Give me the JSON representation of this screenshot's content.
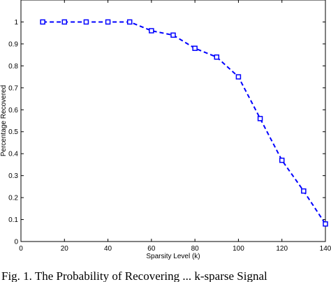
{
  "chart_data": {
    "type": "line",
    "title": "",
    "xlabel": "Sparsity Level (k)",
    "ylabel": "Percentage Recovered",
    "xlim": [
      0,
      140
    ],
    "ylim": [
      0,
      1.1
    ],
    "x_ticks": [
      0,
      20,
      40,
      60,
      80,
      100,
      120,
      140
    ],
    "y_ticks": [
      0,
      0.1,
      0.2,
      0.3,
      0.4,
      0.5,
      0.6,
      0.7,
      0.8,
      0.9,
      1
    ],
    "grid": false,
    "legend": "none",
    "series": [
      {
        "x": [
          10,
          20,
          30,
          40,
          50,
          60,
          70,
          80,
          90,
          100,
          110,
          120,
          130,
          140
        ],
        "y": [
          1.0,
          1.0,
          1.0,
          1.0,
          1.0,
          0.96,
          0.94,
          0.88,
          0.84,
          0.75,
          0.56,
          0.37,
          0.23,
          0.08
        ],
        "color": "#0000ff",
        "line_style": "dashed",
        "marker": "square"
      }
    ]
  },
  "caption": {
    "text": "Fig. 1.   The Probability of Recovering ... k-sparse Signal"
  }
}
